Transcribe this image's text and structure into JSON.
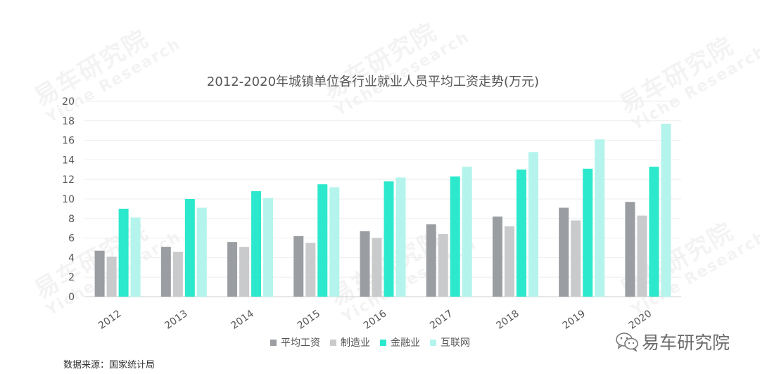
{
  "watermark": {
    "cn": "易车研究院",
    "en": "Yiche Research"
  },
  "brand": {
    "name": "易车研究院"
  },
  "source": "数据来源：国家统计局",
  "chart_data": {
    "type": "bar",
    "title": "2012-2020年城镇单位各行业就业人员平均工资走势(万元)",
    "categories": [
      "2012",
      "2013",
      "2014",
      "2015",
      "2016",
      "2017",
      "2018",
      "2019",
      "2020"
    ],
    "series": [
      {
        "name": "平均工资",
        "color": "#9a9ea3",
        "values": [
          4.7,
          5.1,
          5.6,
          6.2,
          6.7,
          7.4,
          8.2,
          9.1,
          9.7
        ]
      },
      {
        "name": "制造业",
        "color": "#c8cacc",
        "values": [
          4.1,
          4.6,
          5.1,
          5.5,
          6.0,
          6.4,
          7.2,
          7.8,
          8.3
        ]
      },
      {
        "name": "金融业",
        "color": "#2ce8cc",
        "values": [
          9.0,
          10.0,
          10.8,
          11.5,
          11.8,
          12.3,
          13.0,
          13.1,
          13.3
        ]
      },
      {
        "name": "互联网",
        "color": "#b4f4ec",
        "values": [
          8.1,
          9.1,
          10.1,
          11.2,
          12.2,
          13.3,
          14.8,
          16.1,
          17.7
        ]
      }
    ],
    "ylim": [
      0,
      20
    ],
    "yticks": [
      0,
      2,
      4,
      6,
      8,
      10,
      12,
      14,
      16,
      18,
      20
    ],
    "grid": true,
    "legend_position": "bottom"
  }
}
